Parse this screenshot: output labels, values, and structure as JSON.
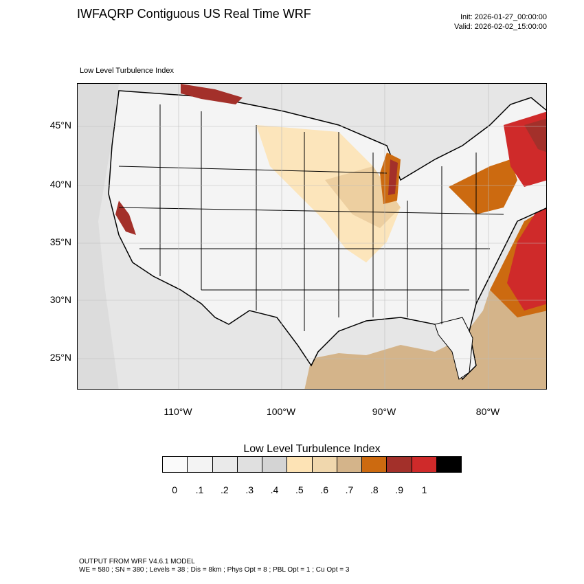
{
  "header": {
    "title": "IWFAQRP Contiguous US Real Time WRF",
    "init": "Init: 2026-01-27_00:00:00",
    "valid": "Valid: 2026-02-02_15:00:00",
    "subtitle": "Low Level Turbulence Index"
  },
  "axes": {
    "lat_labels": [
      "45°N",
      "40°N",
      "35°N",
      "30°N",
      "25°N"
    ],
    "lon_labels": [
      "110°W",
      "100°W",
      "90°W",
      "80°W"
    ]
  },
  "colorbar": {
    "title": "Low Level Turbulence Index",
    "labels": [
      "0",
      ".1",
      ".2",
      ".3",
      ".4",
      ".5",
      ".6",
      ".7",
      ".8",
      ".9",
      "1"
    ],
    "colors": [
      "#fafafa",
      "#f3f3f3",
      "#eaeaea",
      "#e0e0e0",
      "#d4d4d4",
      "#fde3b5",
      "#f0d7ad",
      "#d4b48a",
      "#cc6a10",
      "#a3302a",
      "#cf2a2a",
      "#000000"
    ]
  },
  "footer": {
    "line1": "OUTPUT FROM WRF V4.6.1 MODEL",
    "line2": "WE = 580 ; SN = 380 ; Levels = 38 ; Dis = 8km ; Phys Opt = 8 ; PBL Opt = 1 ; Cu Opt = 3"
  }
}
